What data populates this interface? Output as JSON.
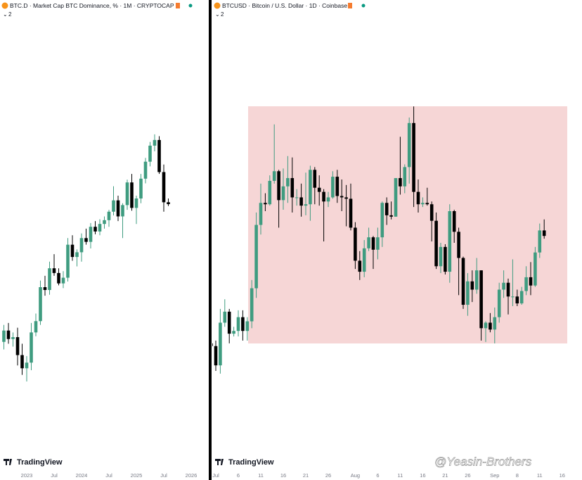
{
  "chart_data": [
    {
      "type": "candlestick",
      "title": "BTC.D · Market Cap BTC Dominance, % · 1M · CRYPTOCAP",
      "pane_count": 2,
      "branding": "TradingView",
      "up_color": "#3f9c80",
      "down_color": "#000000",
      "ylim": [
        31,
        78
      ],
      "categories": [
        null,
        null,
        null,
        null,
        null,
        "2023",
        null,
        null,
        null,
        null,
        null,
        "Jul",
        null,
        null,
        null,
        null,
        null,
        "2024",
        null,
        null,
        null,
        null,
        null,
        "Jul",
        null,
        null,
        null,
        null,
        null,
        "2025",
        null,
        null,
        null,
        null,
        null,
        "Jul",
        null,
        null,
        null,
        null,
        null,
        "2026"
      ],
      "open": [
        44.0,
        45.2,
        44.3,
        44.5,
        42.6,
        41.2,
        41.8,
        45.0,
        46.2,
        49.8,
        49.5,
        51.8,
        51.3,
        50.2,
        50.8,
        54.3,
        53.0,
        53.5,
        55.0,
        54.6,
        56.2,
        55.7,
        56.5,
        56.9,
        57.8,
        59.0,
        57.3,
        58.5,
        60.9,
        58.2,
        59.2,
        61.3,
        63.1,
        64.8,
        65.4,
        62.0,
        58.8,
        null,
        null,
        null,
        null,
        null
      ],
      "high": [
        45.8,
        46.0,
        45.0,
        45.5,
        43.8,
        42.5,
        46.0,
        47.0,
        50.5,
        51.0,
        52.5,
        53.3,
        51.8,
        51.5,
        55.0,
        55.3,
        53.8,
        55.5,
        56.0,
        56.6,
        56.8,
        57.0,
        57.3,
        58.0,
        60.5,
        59.5,
        58.7,
        61.2,
        61.8,
        59.5,
        61.8,
        63.5,
        65.2,
        66.0,
        65.8,
        62.8,
        59.2,
        null,
        null,
        null,
        null,
        null
      ],
      "low": [
        43.2,
        43.8,
        43.5,
        41.5,
        40.5,
        39.8,
        41.0,
        44.6,
        45.8,
        48.9,
        49.0,
        51.0,
        50.0,
        49.7,
        50.4,
        52.6,
        52.0,
        52.5,
        54.3,
        53.9,
        55.4,
        55.3,
        56.0,
        56.2,
        57.4,
        56.8,
        55.0,
        58.0,
        57.9,
        56.5,
        58.7,
        60.8,
        62.6,
        64.2,
        61.8,
        57.8,
        58.4,
        null,
        null,
        null,
        null,
        null
      ],
      "close": [
        45.2,
        44.3,
        44.5,
        42.6,
        41.2,
        41.8,
        45.0,
        46.2,
        49.8,
        49.5,
        51.8,
        51.3,
        50.2,
        50.8,
        54.3,
        53.0,
        53.5,
        55.0,
        54.6,
        56.2,
        55.7,
        56.5,
        56.9,
        57.8,
        59.0,
        57.3,
        58.5,
        60.9,
        58.2,
        59.2,
        61.3,
        63.1,
        64.8,
        65.4,
        62.0,
        58.8,
        58.6,
        null,
        null,
        null,
        null,
        null
      ]
    },
    {
      "type": "candlestick",
      "title": "BTCUSD · Bitcoin / U.S. Dollar · 1D · Coinbase",
      "pane_count": 2,
      "branding": "TradingView",
      "up_color": "#3f9c80",
      "down_color": "#000000",
      "ylim": [
        98.5,
        130.7
      ],
      "categories": [
        null,
        "Jul",
        null,
        null,
        null,
        null,
        "6",
        null,
        null,
        null,
        null,
        "11",
        null,
        null,
        null,
        null,
        "16",
        null,
        null,
        null,
        null,
        "21",
        null,
        null,
        null,
        null,
        "26",
        null,
        null,
        null,
        null,
        null,
        "Aug",
        null,
        null,
        null,
        null,
        "6",
        null,
        null,
        null,
        null,
        "11",
        null,
        null,
        null,
        null,
        "16",
        null,
        null,
        null,
        null,
        "21",
        null,
        null,
        null,
        null,
        "26",
        null,
        null,
        null,
        null,
        null,
        "Sep",
        null,
        null,
        null,
        null,
        "8",
        null,
        null,
        null,
        null,
        "11",
        null,
        null,
        null,
        null,
        "16"
      ],
      "open": [
        107.3,
        107.1,
        105.7,
        108.8,
        109.6,
        108.0,
        108.2,
        109.2,
        108.2,
        108.9,
        111.3,
        115.9,
        117.5,
        117.4,
        119.1,
        119.8,
        117.7,
        118.7,
        119.3,
        117.9,
        117.9,
        117.3,
        117.4,
        119.9,
        118.6,
        118.3,
        117.6,
        117.9,
        119.4,
        118.0,
        117.9,
        117.8,
        115.7,
        113.3,
        112.5,
        114.2,
        115.0,
        114.1,
        115.0,
        117.5,
        116.6,
        116.5,
        119.3,
        118.7,
        120.1,
        123.3,
        118.3,
        117.4,
        117.5,
        117.4,
        116.2,
        112.9,
        114.3,
        112.5,
        116.9,
        115.4,
        113.5,
        110.1,
        111.8,
        111.2,
        112.6,
        108.4,
        108.8,
        108.3,
        109.2,
        111.2,
        111.7,
        110.7,
        110.7,
        110.2,
        111.1,
        112.1,
        111.5,
        113.9,
        115.5,
        null,
        null,
        null,
        null
      ],
      "high": [
        108.8,
        107.5,
        109.8,
        110.5,
        109.8,
        108.5,
        109.7,
        109.7,
        109.2,
        111.9,
        116.8,
        118.9,
        118.2,
        119.5,
        123.2,
        119.9,
        120.0,
        120.9,
        120.8,
        118.5,
        118.9,
        119.7,
        120.2,
        120.1,
        119.5,
        118.5,
        118.3,
        119.8,
        119.9,
        119.2,
        118.8,
        118.9,
        116.1,
        114.0,
        114.8,
        115.7,
        115.1,
        115.7,
        117.6,
        117.9,
        117.6,
        119.3,
        122.3,
        120.3,
        123.7,
        124.5,
        119.2,
        117.9,
        118.6,
        117.6,
        116.8,
        114.6,
        114.5,
        117.4,
        117.0,
        115.7,
        113.6,
        112.4,
        112.6,
        113.5,
        112.6,
        108.9,
        109.5,
        109.9,
        111.7,
        112.6,
        112.0,
        113.4,
        111.2,
        111.4,
        112.9,
        113.2,
        114.3,
        116.0,
        116.3,
        null,
        null,
        null,
        null
      ],
      "low": [
        106.8,
        105.3,
        105.1,
        108.5,
        107.3,
        107.8,
        107.8,
        107.5,
        107.5,
        108.4,
        110.6,
        115.2,
        116.9,
        117.3,
        118.9,
        115.7,
        117.0,
        117.5,
        116.8,
        117.3,
        116.5,
        116.6,
        116.2,
        117.4,
        117.3,
        114.7,
        117.2,
        117.8,
        117.5,
        116.9,
        115.8,
        115.5,
        112.7,
        111.9,
        112.1,
        114.0,
        112.7,
        113.4,
        114.3,
        115.9,
        116.3,
        116.5,
        118.1,
        118.2,
        118.9,
        117.2,
        116.8,
        117.2,
        117.3,
        114.7,
        112.7,
        112.4,
        112.3,
        111.7,
        114.6,
        110.8,
        109.8,
        109.3,
        110.3,
        110.9,
        107.5,
        107.4,
        108.1,
        107.3,
        108.8,
        110.6,
        109.4,
        110.0,
        110.0,
        110.1,
        110.8,
        110.8,
        111.4,
        113.5,
        114.9,
        null,
        null,
        null,
        null
      ],
      "close": [
        107.1,
        105.7,
        108.8,
        109.6,
        108.0,
        108.2,
        109.2,
        108.2,
        108.9,
        111.3,
        115.9,
        117.5,
        117.4,
        119.1,
        119.8,
        117.7,
        118.7,
        119.3,
        117.9,
        117.9,
        117.3,
        117.4,
        119.9,
        118.6,
        118.3,
        117.6,
        117.9,
        119.4,
        118.0,
        117.9,
        117.8,
        115.7,
        113.3,
        112.5,
        114.2,
        115.0,
        114.1,
        115.0,
        117.5,
        116.6,
        116.5,
        119.3,
        118.7,
        120.1,
        123.3,
        118.3,
        117.4,
        117.5,
        117.4,
        116.2,
        112.9,
        114.3,
        112.5,
        116.9,
        115.4,
        113.5,
        110.1,
        111.8,
        111.2,
        112.6,
        108.4,
        108.8,
        108.3,
        109.2,
        111.2,
        111.7,
        110.7,
        110.7,
        110.2,
        111.1,
        112.1,
        111.5,
        113.9,
        115.5,
        115.1,
        null,
        null,
        null,
        null
      ]
    }
  ],
  "watermark": "@Yeasin-Brothers"
}
